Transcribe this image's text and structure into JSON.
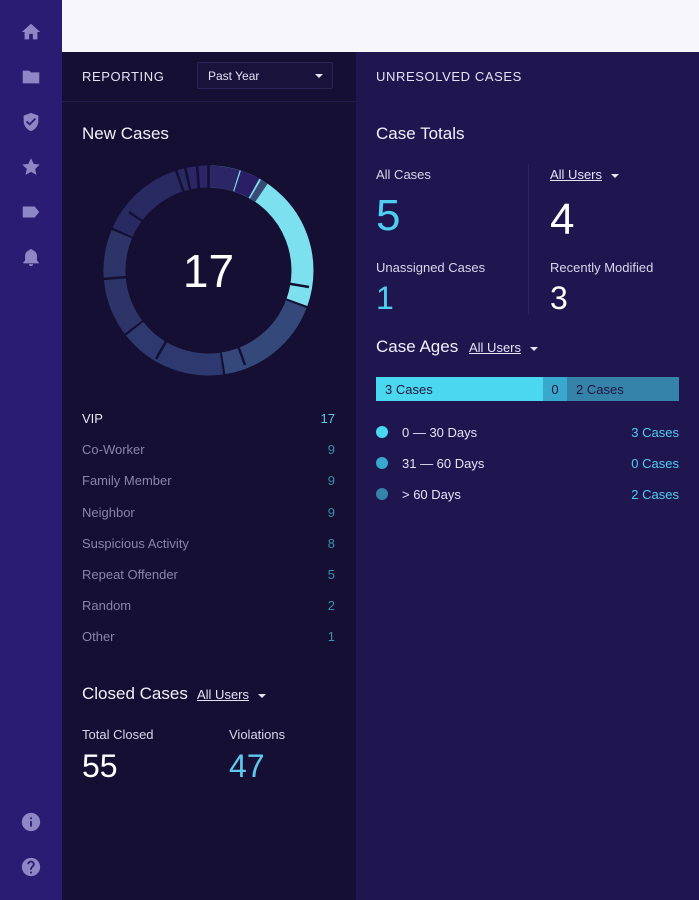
{
  "reporting": {
    "header": "REPORTING",
    "period_select": "Past Year"
  },
  "new_cases": {
    "title": "New Cases",
    "total": "17",
    "categories": [
      {
        "label": "VIP",
        "value": "17"
      },
      {
        "label": "Co-Worker",
        "value": "9"
      },
      {
        "label": "Family Member",
        "value": "9"
      },
      {
        "label": "Neighbor",
        "value": "9"
      },
      {
        "label": "Suspicious Activity",
        "value": "8"
      },
      {
        "label": "Repeat Offender",
        "value": "5"
      },
      {
        "label": "Random",
        "value": "2"
      },
      {
        "label": "Other",
        "value": "1"
      }
    ]
  },
  "closed_cases": {
    "title": "Closed Cases",
    "user_filter": "All Users",
    "total_closed_label": "Total Closed",
    "total_closed": "55",
    "violations_label": "Violations",
    "violations": "47"
  },
  "unresolved": {
    "header": "UNRESOLVED CASES",
    "totals_title": "Case Totals",
    "all_cases_label": "All Cases",
    "all_cases": "5",
    "user_filter": "All Users",
    "user_count": "4",
    "unassigned_label": "Unassigned Cases",
    "unassigned": "1",
    "recently_modified_label": "Recently Modified",
    "recently_modified": "3",
    "ages_title": "Case Ages",
    "ages_user_filter": "All Users",
    "age_bar": {
      "seg1_label": "3 Cases",
      "seg2_label": "0",
      "seg3_label": "2 Cases"
    },
    "ages": [
      {
        "label": "0 — 30 Days",
        "value": "3 Cases",
        "color": "#4ad8f0"
      },
      {
        "label": "31 — 60 Days",
        "value": "0 Cases",
        "color": "#38a9cc"
      },
      {
        "label": "> 60 Days",
        "value": "2 Cases",
        "color": "#3583a8"
      }
    ]
  },
  "colors": {
    "sidebar": "#2b1c73",
    "accent_cyan": "#4ad8f0",
    "accent_blue": "#5fc8ef",
    "left_panel": "#150f33",
    "right_panel": "#1f1650"
  },
  "sidebar_icons": [
    "home-icon",
    "folder-icon",
    "shield-icon",
    "star-icon",
    "tag-icon",
    "bell-icon",
    "info-icon",
    "help-icon"
  ]
}
